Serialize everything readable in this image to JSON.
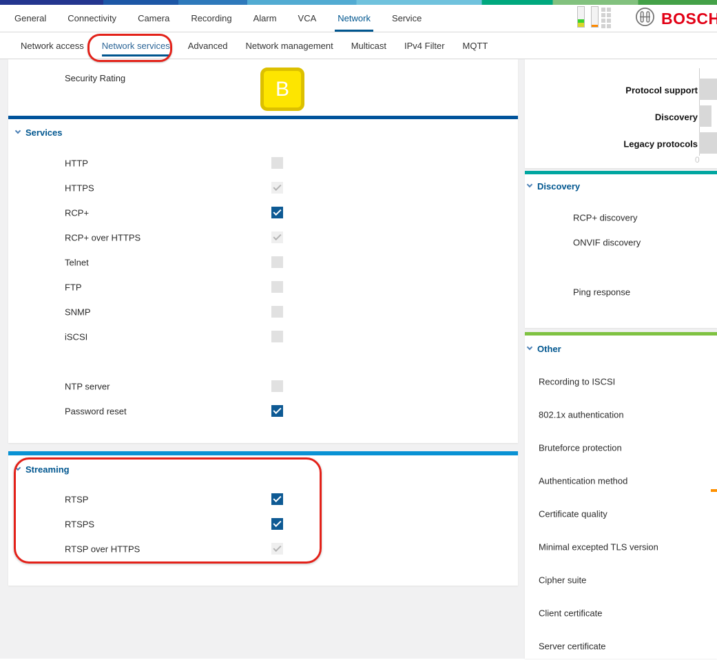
{
  "accent_colors": {
    "bosch_blue": "#00568f",
    "checkbox_blue": "#0e5a94",
    "annotation_red": "#e32119",
    "bosch_logo_red": "#e20015",
    "divider_services": "#00539b",
    "divider_streaming": "#0992d4",
    "divider_discovery": "#00a6a0",
    "divider_other": "#7fc242",
    "rating_badge_fill": "#fde500",
    "rating_badge_border": "#dcc000"
  },
  "topnav": {
    "items": [
      {
        "label": "General",
        "active": false
      },
      {
        "label": "Connectivity",
        "active": false
      },
      {
        "label": "Camera",
        "active": false
      },
      {
        "label": "Recording",
        "active": false
      },
      {
        "label": "Alarm",
        "active": false
      },
      {
        "label": "VCA",
        "active": false
      },
      {
        "label": "Network",
        "active": true
      },
      {
        "label": "Service",
        "active": false
      }
    ],
    "brand": "BOSCH"
  },
  "subnav": {
    "items": [
      {
        "label": "Network access",
        "active": false
      },
      {
        "label": "Network services",
        "active": true,
        "annotated": true
      },
      {
        "label": "Advanced",
        "active": false
      },
      {
        "label": "Network management",
        "active": false
      },
      {
        "label": "Multicast",
        "active": false
      },
      {
        "label": "IPv4 Filter",
        "active": false
      },
      {
        "label": "MQTT",
        "active": false
      }
    ]
  },
  "main": {
    "security_rating": {
      "label": "Security Rating",
      "value": "B"
    },
    "services": {
      "title": "Services",
      "items": [
        {
          "label": "HTTP",
          "state": "disabled"
        },
        {
          "label": "HTTPS",
          "state": "disabled_checked"
        },
        {
          "label": "RCP+",
          "state": "on"
        },
        {
          "label": "RCP+ over HTTPS",
          "state": "disabled_checked"
        },
        {
          "label": "Telnet",
          "state": "disabled"
        },
        {
          "label": "FTP",
          "state": "disabled"
        },
        {
          "label": "SNMP",
          "state": "disabled"
        },
        {
          "label": "iSCSI",
          "state": "disabled"
        },
        {
          "state": "spacer"
        },
        {
          "label": "NTP server",
          "state": "disabled"
        },
        {
          "label": "Password reset",
          "state": "on"
        }
      ]
    },
    "streaming": {
      "title": "Streaming",
      "annotated": true,
      "items": [
        {
          "label": "RTSP",
          "state": "on"
        },
        {
          "label": "RTSPS",
          "state": "on"
        },
        {
          "label": "RTSP over HTTPS",
          "state": "disabled_checked"
        }
      ]
    }
  },
  "sidebar": {
    "discovery": {
      "title": "Discovery",
      "items": [
        {
          "label": "RCP+ discovery"
        },
        {
          "label": "ONVIF discovery"
        },
        {
          "spacer": true
        },
        {
          "label": "Ping response"
        }
      ]
    },
    "other": {
      "title": "Other",
      "items": [
        {
          "label": "Recording to ISCSI"
        },
        {
          "label": "802.1x authentication"
        },
        {
          "label": "Bruteforce protection"
        },
        {
          "label": "Authentication method"
        },
        {
          "label": "Certificate quality"
        },
        {
          "label": "Minimal excepted TLS version"
        },
        {
          "label": "Cipher suite"
        },
        {
          "label": "Client certificate"
        },
        {
          "label": "Server certificate"
        }
      ]
    }
  },
  "chart_data": {
    "type": "bar",
    "orientation": "horizontal",
    "categories": [
      "Protocol support",
      "Discovery",
      "Legacy protocols"
    ],
    "values": [
      26,
      18,
      26
    ],
    "units": "visible pixels from zero axis",
    "axis_origin_label": "0",
    "bar_color": "#d8d8d8",
    "grid": false,
    "legend": false,
    "note": "Horizontal gray bars grow rightward from the 0 axis at the right side of the panel; the 'Protocol support' and 'Legacy protocols' bars are cut off by the right screen edge, 'Discovery' bar ends visibly."
  }
}
